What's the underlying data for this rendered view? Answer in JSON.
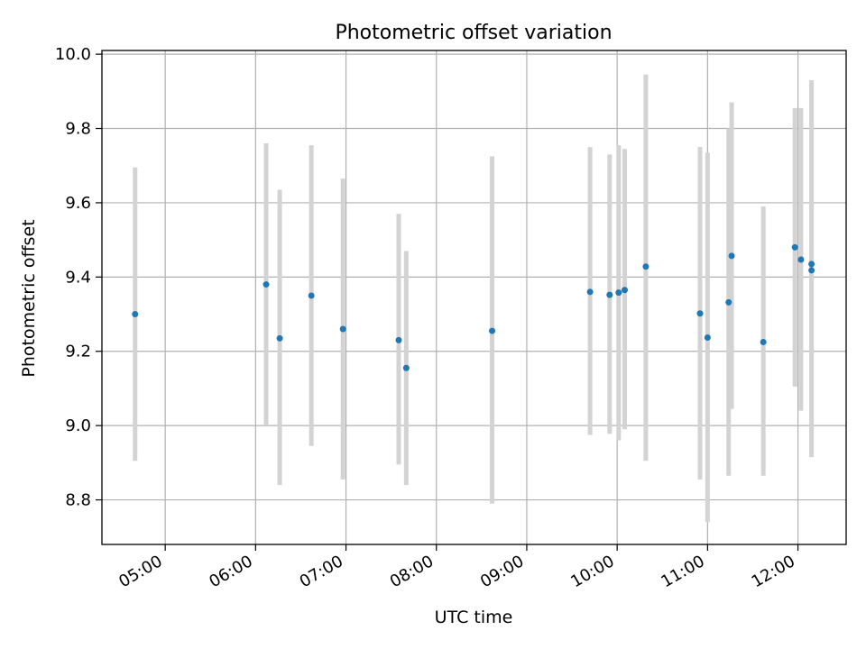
{
  "chart_data": {
    "type": "scatter",
    "title": "Photometric offset variation",
    "xlabel": "UTC time",
    "ylabel": "Photometric offset",
    "xlim": [
      "04:18",
      "12:32"
    ],
    "ylim": [
      8.68,
      10.01
    ],
    "grid": true,
    "x_ticks": [
      "05:00",
      "06:00",
      "07:00",
      "08:00",
      "09:00",
      "10:00",
      "11:00",
      "12:00"
    ],
    "y_ticks": [
      8.8,
      9.0,
      9.2,
      9.4,
      9.6,
      9.8,
      10.0
    ],
    "y_tick_labels": [
      "8.8",
      "9.0",
      "9.2",
      "9.4",
      "9.6",
      "9.8",
      "10.0"
    ],
    "marker_color": "#1f77b4",
    "errorbar_color": "#d3d3d3",
    "points": [
      {
        "x": "04:40",
        "y": 9.3,
        "ylow": 8.905,
        "yhigh": 9.695
      },
      {
        "x": "06:07",
        "y": 9.38,
        "ylow": 9.0,
        "yhigh": 9.76
      },
      {
        "x": "06:16",
        "y": 9.235,
        "ylow": 8.84,
        "yhigh": 9.635
      },
      {
        "x": "06:37",
        "y": 9.35,
        "ylow": 8.945,
        "yhigh": 9.755
      },
      {
        "x": "06:58",
        "y": 9.26,
        "ylow": 8.855,
        "yhigh": 9.665
      },
      {
        "x": "07:35",
        "y": 9.23,
        "ylow": 8.895,
        "yhigh": 9.57
      },
      {
        "x": "07:40",
        "y": 9.155,
        "ylow": 8.84,
        "yhigh": 9.47
      },
      {
        "x": "08:37",
        "y": 9.255,
        "ylow": 8.79,
        "yhigh": 9.725
      },
      {
        "x": "09:42",
        "y": 9.36,
        "ylow": 8.975,
        "yhigh": 9.75
      },
      {
        "x": "09:55",
        "y": 9.352,
        "ylow": 8.978,
        "yhigh": 9.73
      },
      {
        "x": "10:01",
        "y": 9.358,
        "ylow": 8.96,
        "yhigh": 9.755
      },
      {
        "x": "10:05",
        "y": 9.365,
        "ylow": 8.99,
        "yhigh": 9.745
      },
      {
        "x": "10:19",
        "y": 9.428,
        "ylow": 8.905,
        "yhigh": 9.945
      },
      {
        "x": "10:55",
        "y": 9.302,
        "ylow": 8.855,
        "yhigh": 9.75
      },
      {
        "x": "11:00",
        "y": 9.237,
        "ylow": 8.74,
        "yhigh": 9.735
      },
      {
        "x": "11:14",
        "y": 9.332,
        "ylow": 8.865,
        "yhigh": 9.8
      },
      {
        "x": "11:16",
        "y": 9.457,
        "ylow": 9.045,
        "yhigh": 9.87
      },
      {
        "x": "11:37",
        "y": 9.225,
        "ylow": 8.865,
        "yhigh": 9.59
      },
      {
        "x": "11:58",
        "y": 9.48,
        "ylow": 9.105,
        "yhigh": 9.855
      },
      {
        "x": "12:02",
        "y": 9.447,
        "ylow": 9.04,
        "yhigh": 9.855
      },
      {
        "x": "12:09",
        "y": 9.435,
        "ylow": 8.945,
        "yhigh": 9.93
      },
      {
        "x": "12:09",
        "y": 9.418,
        "ylow": 8.915,
        "yhigh": 9.91
      }
    ]
  }
}
